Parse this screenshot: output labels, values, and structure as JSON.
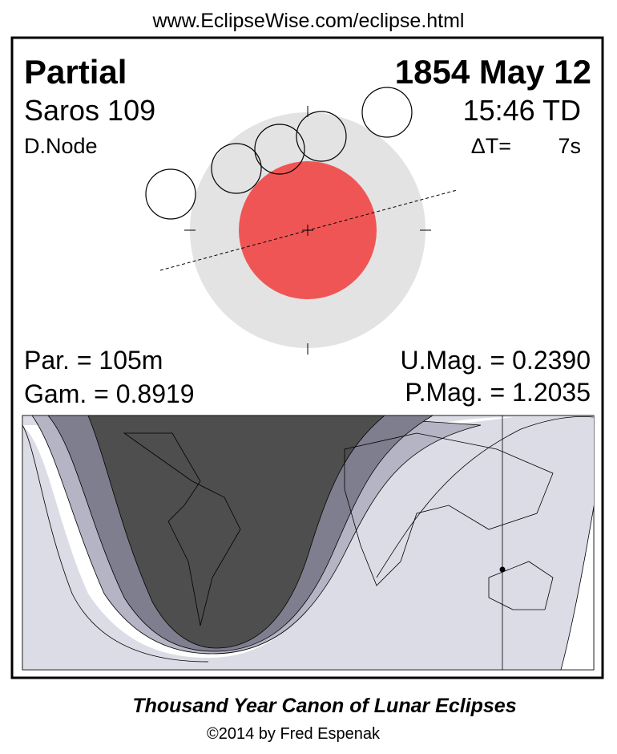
{
  "header": {
    "url": "www.EclipseWise.com/eclipse.html"
  },
  "info": {
    "type": "Partial",
    "date": "1854 May 12",
    "saros": "Saros 109",
    "time": "15:46 TD",
    "node": "D.Node",
    "delta_t_label": "ΔT=",
    "delta_t_value": "7s"
  },
  "parameters": {
    "duration": "Par. = 105m",
    "umbral_magnitude": "U.Mag. = 0.2390",
    "gamma": "Gam. = 0.8919",
    "penumbral_magnitude": "P.Mag. = 1.2035"
  },
  "footer": {
    "title": "Thousand Year Canon of Lunar Eclipses",
    "copyright": "©2014 by Fred Espenak"
  }
}
